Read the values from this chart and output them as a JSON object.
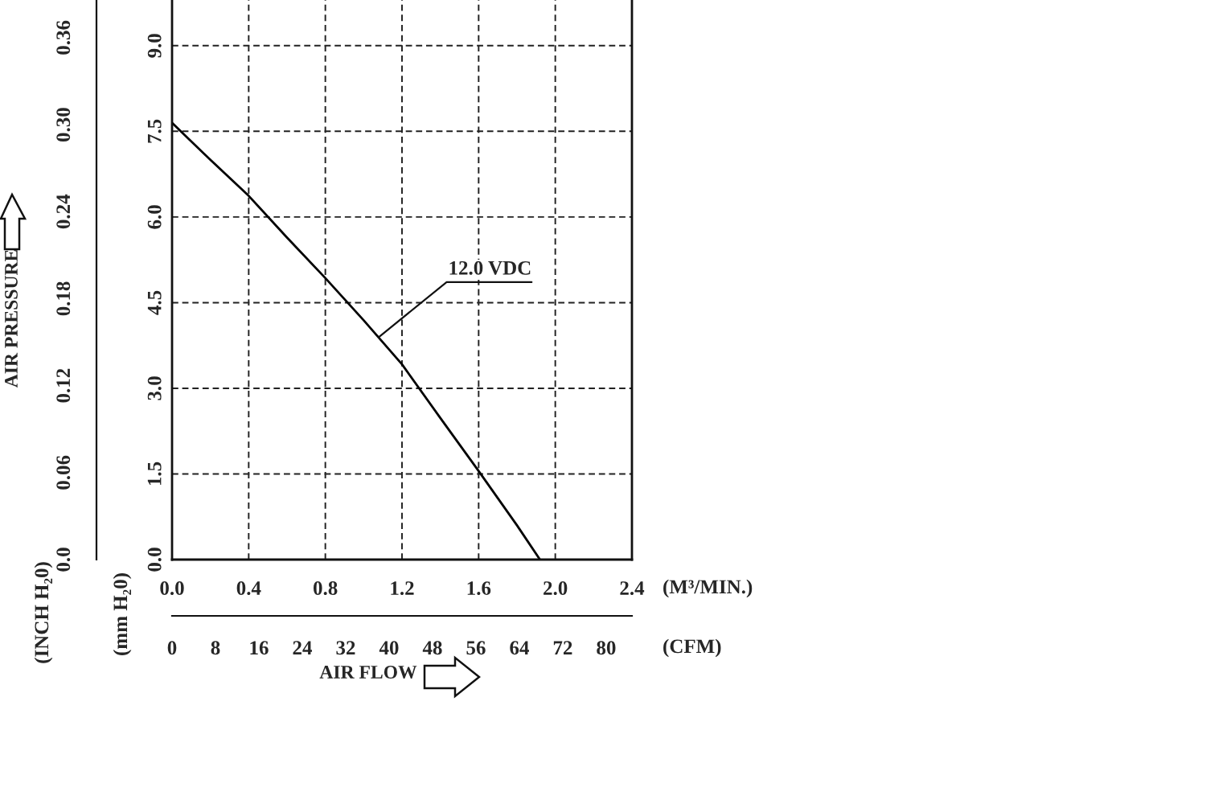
{
  "chart_data": {
    "type": "line",
    "xlabel": "(M³/MIN.)",
    "x2label": "(CFM)",
    "ylabel": "(mm H₂0)",
    "y2label": "(INCH H₂0)",
    "annotations": [
      "AIR PRESSURE",
      "AIR FLOW",
      {
        "text": "12.0 VDC",
        "x": 1.08,
        "y": 3.9
      }
    ],
    "x": [
      0,
      0.2,
      0.4,
      0.6,
      0.8,
      1.0,
      1.2,
      1.4,
      1.6,
      1.8,
      1.92
    ],
    "series": [
      {
        "color": "#000000",
        "values": [
          7.65,
          7.0,
          6.37,
          5.64,
          4.93,
          4.19,
          3.42,
          2.48,
          1.55,
          0.6,
          0
        ]
      }
    ],
    "xlim": [
      0,
      2.4
    ],
    "xticks": [
      {
        "value": 0,
        "label": "0.0"
      },
      0.4,
      0.8,
      1.2,
      1.6,
      {
        "value": 2,
        "label": "2.0"
      },
      2.4
    ],
    "ylim": [
      0,
      9.8
    ],
    "yticks": [
      {
        "value": 0,
        "label": "0.0"
      },
      1.5,
      {
        "value": 3,
        "label": "3.0"
      },
      4.5,
      {
        "value": 6,
        "label": "6.0"
      },
      7.5,
      {
        "value": 9,
        "label": "9.0"
      }
    ],
    "x2lim": [
      0,
      84.75
    ],
    "x2ticks": [
      0,
      8,
      16,
      24,
      32,
      40,
      48,
      56,
      64,
      72,
      80
    ],
    "y2lim": [
      0,
      0.386
    ],
    "y2ticks": [
      {
        "value": 0,
        "label": "0.0"
      },
      0.06,
      0.12,
      0.18,
      0.24,
      {
        "value": 0.3,
        "label": "0.30"
      },
      0.36
    ],
    "grid": true,
    "line_style": "solid"
  }
}
